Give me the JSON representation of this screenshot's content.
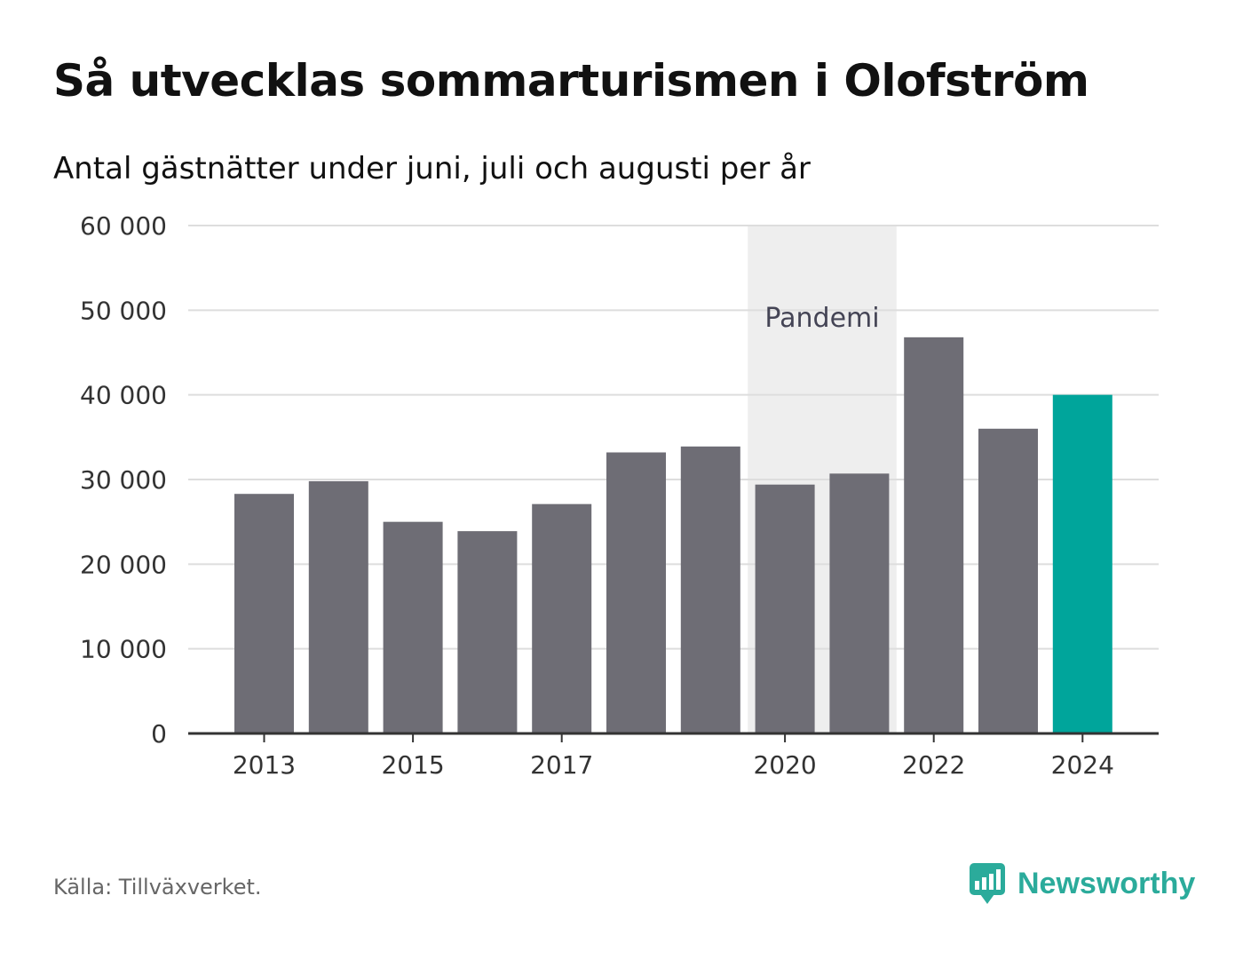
{
  "title": "Så utvecklas sommarturismen i Olofström",
  "subtitle": "Antal gästnätter under juni, juli och augusti per år",
  "source": "Källa: Tillväxverket.",
  "brand": {
    "name": "Newsworthy",
    "logo_icon": "bar-chart-speech-bubble-icon",
    "color": "#2bab9b"
  },
  "chart_data": {
    "type": "bar",
    "categories": [
      "2013",
      "2014",
      "2015",
      "2016",
      "2017",
      "2018",
      "2019",
      "2020",
      "2021",
      "2022",
      "2023",
      "2024"
    ],
    "values": [
      28300,
      29800,
      25000,
      23900,
      27100,
      33200,
      33900,
      29400,
      30700,
      46800,
      36000,
      40000
    ],
    "x_tick_labels": [
      {
        "year": "2013",
        "label": "2013"
      },
      {
        "year": "2015",
        "label": "2015"
      },
      {
        "year": "2017",
        "label": "2017"
      },
      {
        "year": "2020",
        "label": "2020"
      },
      {
        "year": "2022",
        "label": "2022"
      },
      {
        "year": "2024",
        "label": "2024"
      }
    ],
    "y_ticks": [
      {
        "value": 0,
        "label": "0"
      },
      {
        "value": 10000,
        "label": "10 000"
      },
      {
        "value": 20000,
        "label": "20 000"
      },
      {
        "value": 30000,
        "label": "30 000"
      },
      {
        "value": 40000,
        "label": "40 000"
      },
      {
        "value": 50000,
        "label": "50 000"
      },
      {
        "value": 60000,
        "label": "60 000"
      }
    ],
    "ylim": [
      0,
      60000
    ],
    "grid": true,
    "bar_color": "#6e6d75",
    "highlight": {
      "category": "2024",
      "color": "#00a59b"
    },
    "annotation": {
      "label": "Pandemi",
      "from": "2020",
      "to": "2021",
      "color": "#eeeeee"
    }
  }
}
